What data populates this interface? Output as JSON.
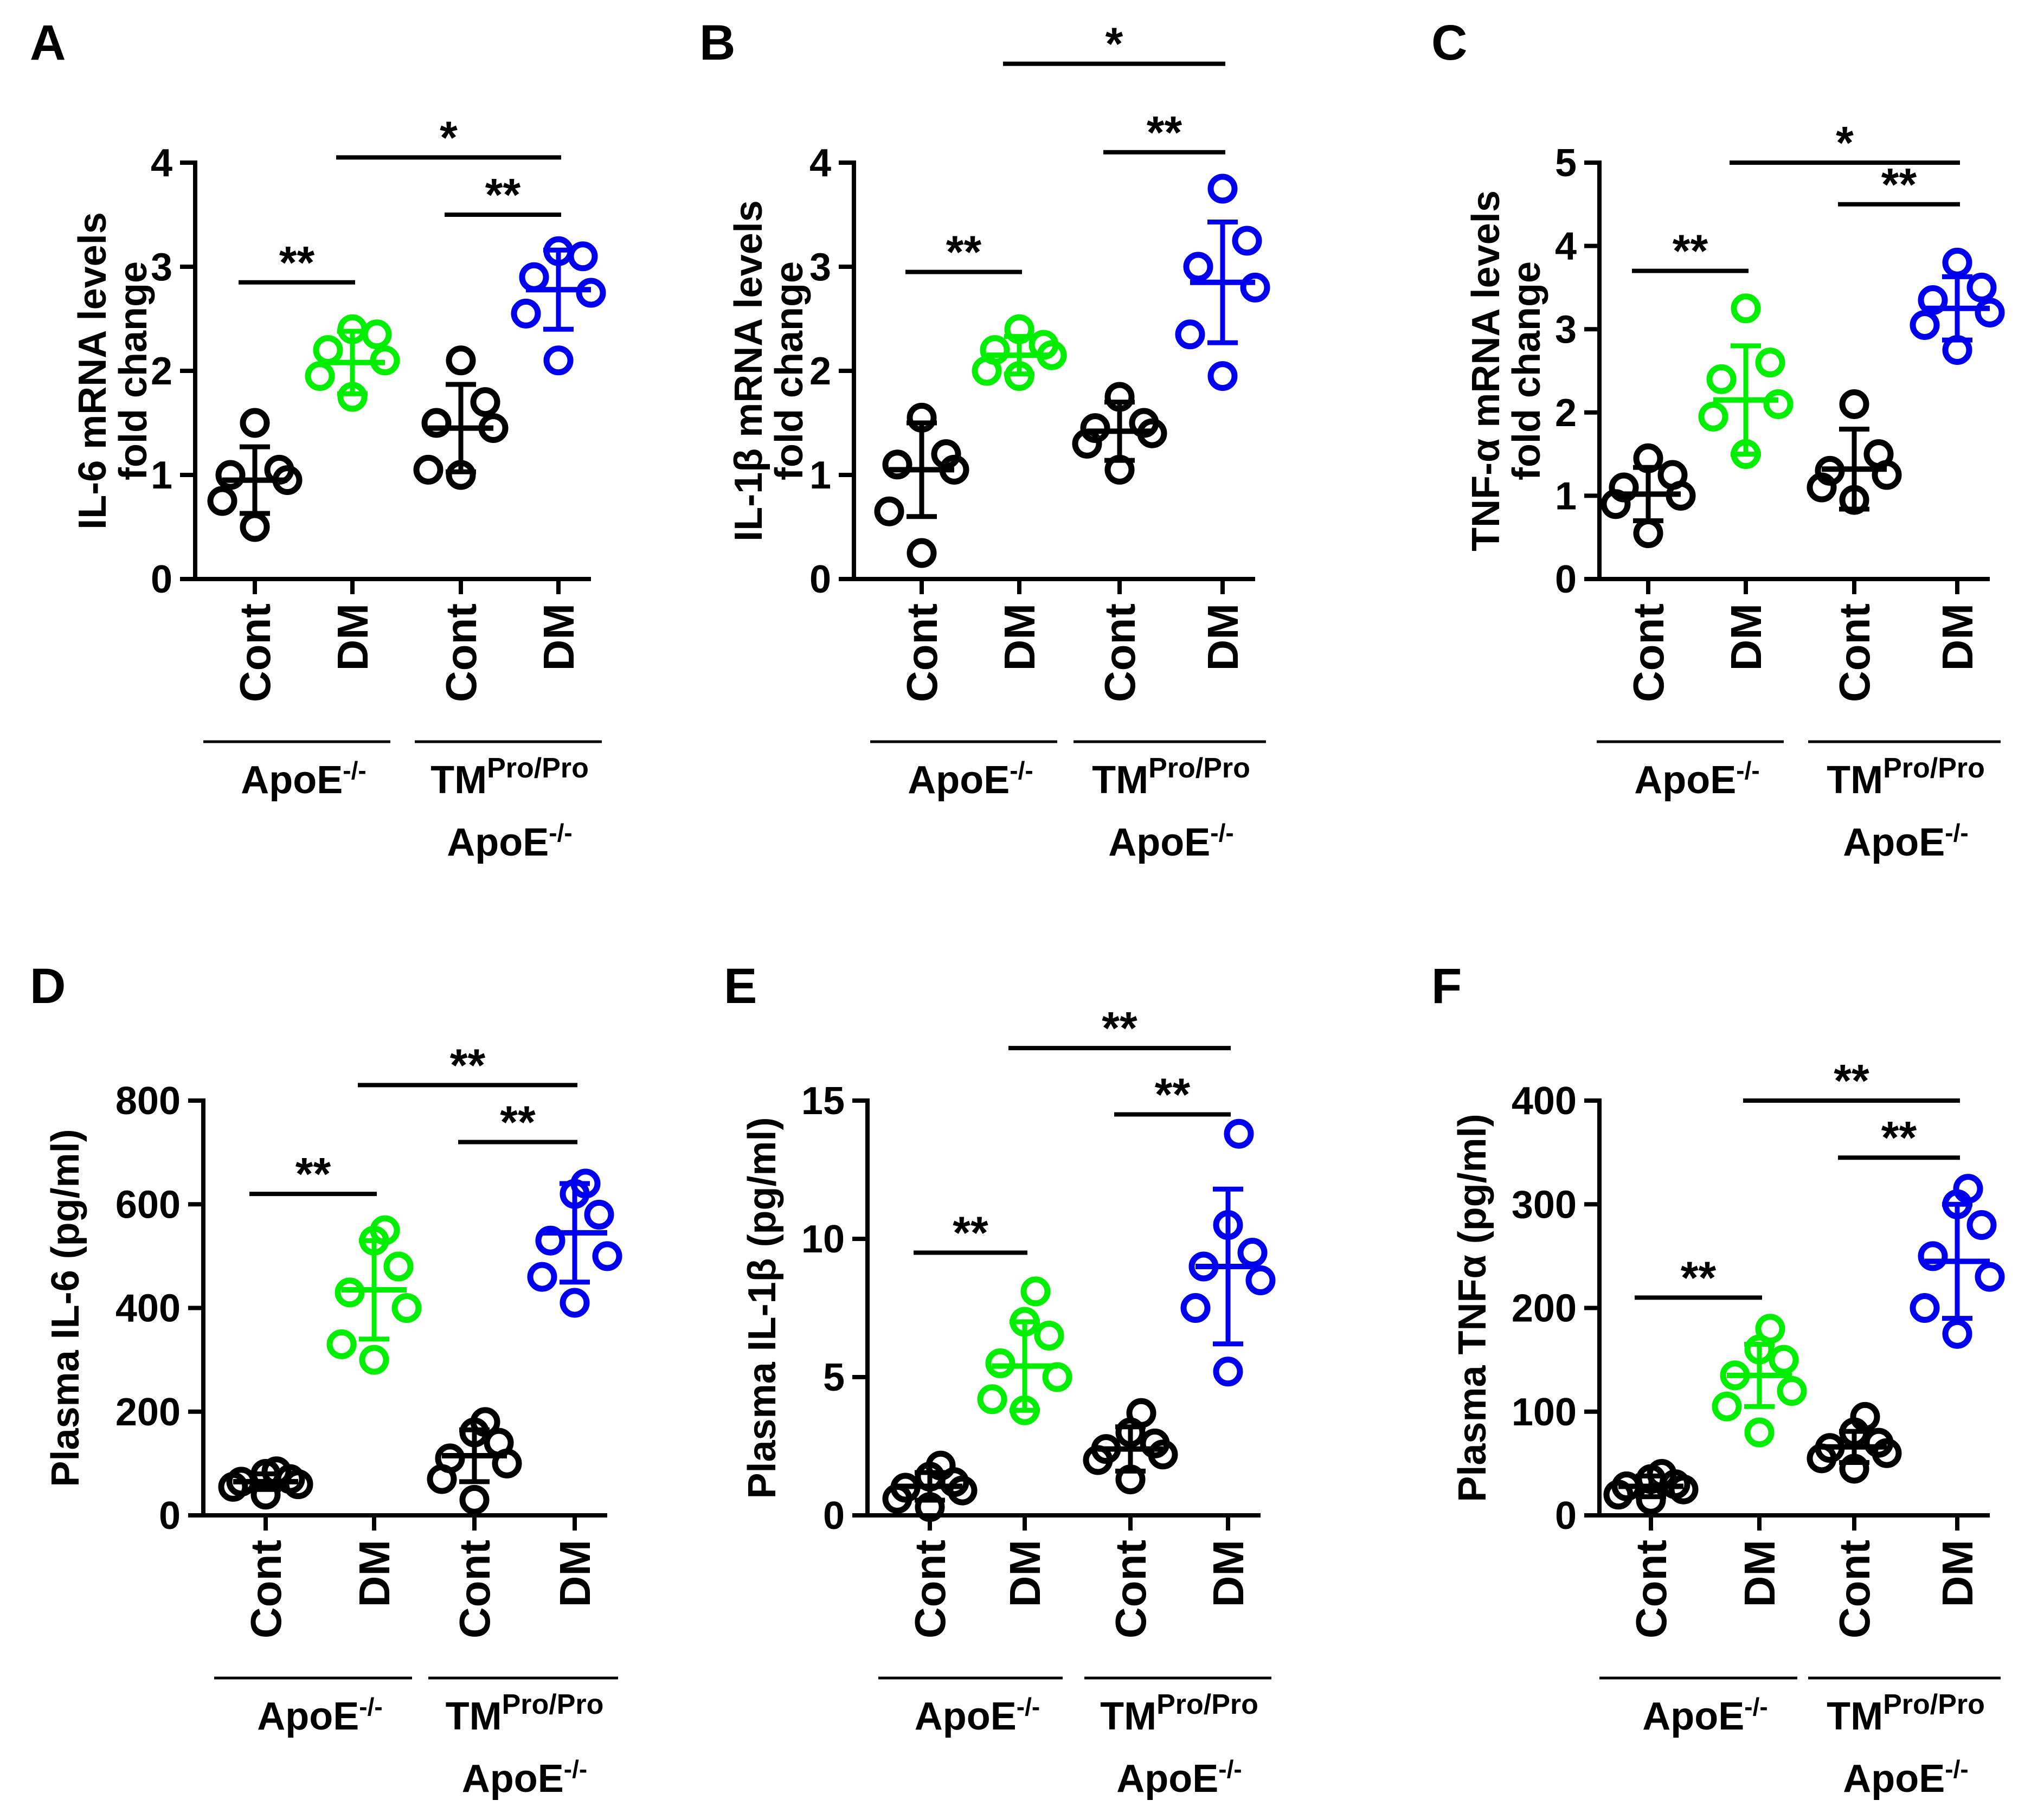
{
  "colors": {
    "Cont": "#000000",
    "DM_ApoE": "#00ee00",
    "DM_TM": "#0000ee",
    "axis": "#000000"
  },
  "categories": [
    "Cont",
    "DM",
    "Cont",
    "DM"
  ],
  "groups": [
    {
      "lines": [
        "ApoE",
        "-/-"
      ]
    },
    {
      "lines": [
        "TM",
        "Pro/Pro",
        "ApoE",
        "-/-"
      ]
    }
  ],
  "chart_data": [
    {
      "panel": "A",
      "type": "scatter",
      "ylabel_lines": [
        "IL-6 mRNA levels",
        "fold change"
      ],
      "ylim": [
        0,
        4
      ],
      "yticks": [
        0,
        1,
        2,
        3,
        4
      ],
      "grid": false,
      "categories": [
        "Cont",
        "DM",
        "Cont",
        "DM"
      ],
      "series": [
        {
          "points": [
            0.5,
            0.75,
            0.95,
            1.0,
            1.05,
            1.5
          ],
          "mean": 0.95,
          "sd": 0.32
        },
        {
          "points": [
            1.75,
            1.95,
            2.1,
            2.2,
            2.35,
            2.4
          ],
          "mean": 2.08,
          "sd": 0.3
        },
        {
          "points": [
            1.0,
            1.05,
            1.45,
            1.5,
            1.7,
            2.1
          ],
          "mean": 1.45,
          "sd": 0.42
        },
        {
          "points": [
            2.1,
            2.55,
            2.75,
            2.9,
            3.1,
            3.15
          ],
          "mean": 2.78,
          "sd": 0.38
        }
      ],
      "comparisons": [
        {
          "from": 0,
          "to": 1,
          "level": 2.85,
          "label": "**"
        },
        {
          "from": 2,
          "to": 3,
          "level": 3.5,
          "label": "**"
        },
        {
          "from": 1,
          "to": 3,
          "level": 4.05,
          "label": "*"
        }
      ]
    },
    {
      "panel": "B",
      "type": "scatter",
      "ylabel_lines": [
        "IL-1β mRNA levels",
        "fold change"
      ],
      "ylim": [
        0,
        4
      ],
      "yticks": [
        0,
        1,
        2,
        3,
        4
      ],
      "grid": false,
      "categories": [
        "Cont",
        "DM",
        "Cont",
        "DM"
      ],
      "series": [
        {
          "points": [
            0.25,
            0.65,
            1.05,
            1.1,
            1.2,
            1.55
          ],
          "mean": 1.05,
          "sd": 0.45
        },
        {
          "points": [
            1.95,
            2.0,
            2.15,
            2.2,
            2.25,
            2.4
          ],
          "mean": 2.15,
          "sd": 0.18
        },
        {
          "points": [
            1.05,
            1.3,
            1.4,
            1.45,
            1.5,
            1.75
          ],
          "mean": 1.42,
          "sd": 0.28
        },
        {
          "points": [
            1.95,
            2.35,
            2.8,
            3.0,
            3.25,
            3.75
          ],
          "mean": 2.85,
          "sd": 0.58
        }
      ],
      "comparisons": [
        {
          "from": 0,
          "to": 1,
          "level": 2.95,
          "label": "**"
        },
        {
          "from": 2,
          "to": 3,
          "level": 4.1,
          "label": "**"
        },
        {
          "from": 1,
          "to": 3,
          "level": 4.95,
          "label": "*"
        }
      ]
    },
    {
      "panel": "C",
      "type": "scatter",
      "ylabel_lines": [
        "TNF-α mRNA levels",
        "fold change"
      ],
      "ylim": [
        0,
        5
      ],
      "yticks": [
        0,
        1,
        2,
        3,
        4,
        5
      ],
      "grid": false,
      "categories": [
        "Cont",
        "DM",
        "Cont",
        "DM"
      ],
      "series": [
        {
          "points": [
            0.55,
            0.9,
            1.0,
            1.1,
            1.25,
            1.45
          ],
          "mean": 1.02,
          "sd": 0.32
        },
        {
          "points": [
            1.5,
            1.95,
            2.1,
            2.4,
            2.6,
            3.25
          ],
          "mean": 2.15,
          "sd": 0.65
        },
        {
          "points": [
            0.95,
            1.1,
            1.25,
            1.3,
            1.5,
            2.1
          ],
          "mean": 1.32,
          "sd": 0.48
        },
        {
          "points": [
            2.75,
            3.05,
            3.2,
            3.35,
            3.5,
            3.8
          ],
          "mean": 3.25,
          "sd": 0.38
        }
      ],
      "comparisons": [
        {
          "from": 0,
          "to": 1,
          "level": 3.7,
          "label": "**"
        },
        {
          "from": 2,
          "to": 3,
          "level": 4.5,
          "label": "**"
        },
        {
          "from": 1,
          "to": 3,
          "level": 5.0,
          "label": "*"
        }
      ]
    },
    {
      "panel": "D",
      "type": "scatter",
      "ylabel_lines": [
        "Plasma IL-6 (pg/ml)"
      ],
      "ylim": [
        0,
        800
      ],
      "yticks": [
        0,
        200,
        400,
        600,
        800
      ],
      "grid": false,
      "categories": [
        "Cont",
        "DM",
        "Cont",
        "DM"
      ],
      "series": [
        {
          "points": [
            40,
            55,
            60,
            65,
            70,
            80,
            85
          ],
          "mean": 65,
          "sd": 15
        },
        {
          "points": [
            300,
            330,
            400,
            430,
            480,
            530,
            550
          ],
          "mean": 435,
          "sd": 95
        },
        {
          "points": [
            30,
            70,
            100,
            110,
            140,
            160,
            180
          ],
          "mean": 115,
          "sd": 50
        },
        {
          "points": [
            410,
            460,
            500,
            530,
            580,
            620,
            640
          ],
          "mean": 545,
          "sd": 95
        }
      ],
      "comparisons": [
        {
          "from": 0,
          "to": 1,
          "level": 620,
          "label": "**"
        },
        {
          "from": 2,
          "to": 3,
          "level": 720,
          "label": "**"
        },
        {
          "from": 1,
          "to": 3,
          "level": 830,
          "label": "**"
        }
      ]
    },
    {
      "panel": "E",
      "type": "scatter",
      "ylabel_lines": [
        "Plasma IL-1β (pg/ml)"
      ],
      "ylim": [
        0,
        15
      ],
      "yticks": [
        0,
        5,
        10,
        15
      ],
      "grid": false,
      "categories": [
        "Cont",
        "DM",
        "Cont",
        "DM"
      ],
      "series": [
        {
          "points": [
            0.3,
            0.6,
            0.9,
            1.0,
            1.2,
            1.4,
            1.8
          ],
          "mean": 1.05,
          "sd": 0.5
        },
        {
          "points": [
            3.8,
            4.2,
            5.0,
            5.5,
            6.5,
            7.0,
            8.1
          ],
          "mean": 5.4,
          "sd": 1.6
        },
        {
          "points": [
            1.3,
            2.0,
            2.2,
            2.4,
            2.6,
            3.0,
            3.7
          ],
          "mean": 2.4,
          "sd": 0.8
        },
        {
          "points": [
            5.2,
            7.5,
            8.5,
            9.0,
            9.5,
            10.5,
            13.8
          ],
          "mean": 9.0,
          "sd": 2.8
        }
      ],
      "comparisons": [
        {
          "from": 0,
          "to": 1,
          "level": 9.5,
          "label": "**"
        },
        {
          "from": 2,
          "to": 3,
          "level": 14.5,
          "label": "**"
        },
        {
          "from": 1,
          "to": 3,
          "level": 16.9,
          "label": "**"
        }
      ]
    },
    {
      "panel": "F",
      "type": "scatter",
      "ylabel_lines": [
        "Plasma TNFα (pg/ml)"
      ],
      "ylim": [
        0,
        400
      ],
      "yticks": [
        0,
        100,
        200,
        300,
        400
      ],
      "grid": false,
      "categories": [
        "Cont",
        "DM",
        "Cont",
        "DM"
      ],
      "series": [
        {
          "points": [
            15,
            20,
            25,
            28,
            30,
            35,
            40
          ],
          "mean": 28,
          "sd": 10
        },
        {
          "points": [
            80,
            105,
            120,
            135,
            150,
            160,
            180
          ],
          "mean": 135,
          "sd": 30
        },
        {
          "points": [
            45,
            55,
            60,
            65,
            70,
            80,
            95
          ],
          "mean": 66,
          "sd": 15
        },
        {
          "points": [
            175,
            200,
            230,
            250,
            280,
            300,
            315
          ],
          "mean": 245,
          "sd": 55
        }
      ],
      "comparisons": [
        {
          "from": 0,
          "to": 1,
          "level": 210,
          "label": "**"
        },
        {
          "from": 2,
          "to": 3,
          "level": 345,
          "label": "**"
        },
        {
          "from": 1,
          "to": 3,
          "level": 400,
          "label": "**"
        }
      ]
    }
  ]
}
